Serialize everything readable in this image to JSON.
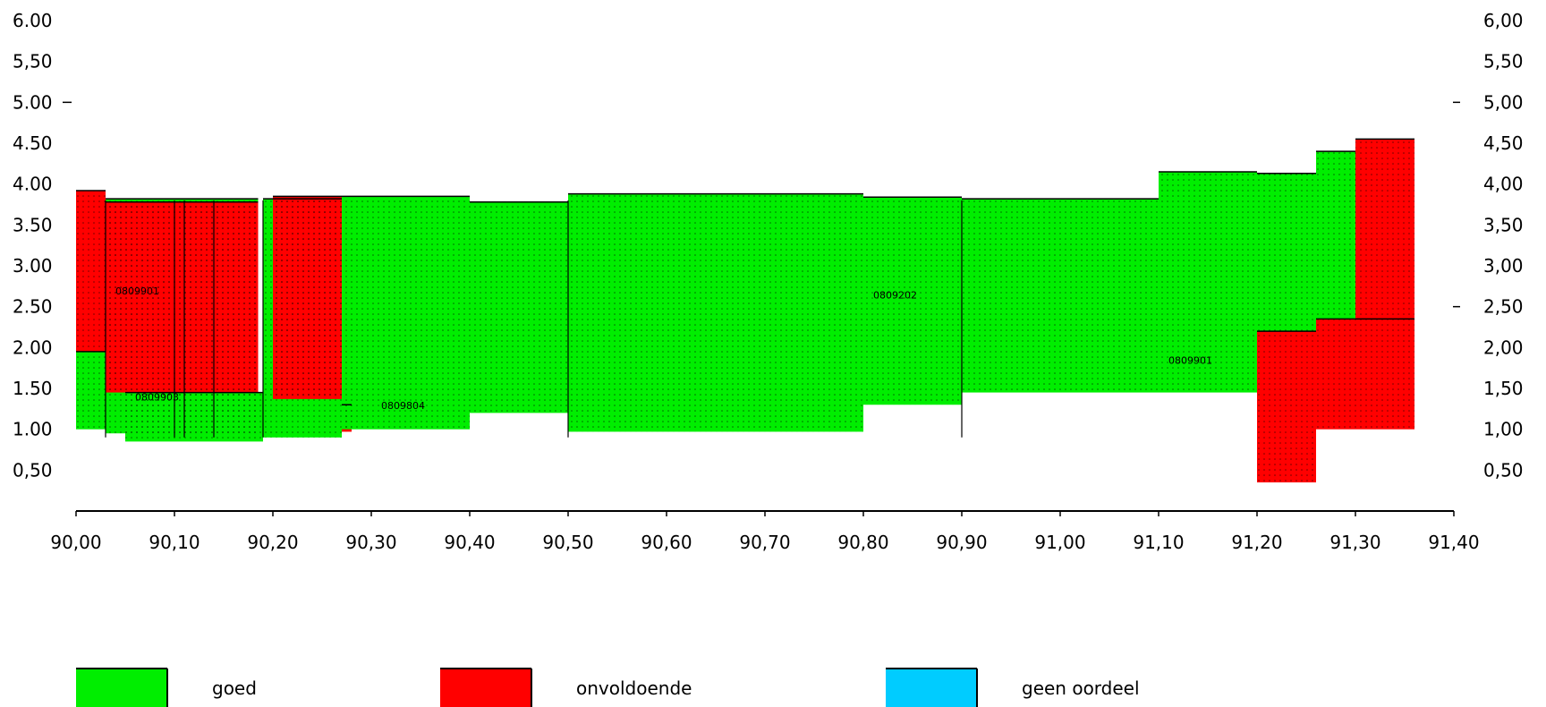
{
  "colors": {
    "goed": "#00ee00",
    "onvoldoende": "#ff0000",
    "geen_oordeel": "#00ccff",
    "axis": "#000000"
  },
  "chart_data": {
    "type": "area",
    "xlim": [
      90.0,
      91.4
    ],
    "ylim": [
      0.0,
      6.0
    ],
    "x_ticks": [
      "90,00",
      "90,10",
      "90,20",
      "90,30",
      "90,40",
      "90,50",
      "90,60",
      "90,70",
      "90,80",
      "90,90",
      "91,00",
      "91,10",
      "91,20",
      "91,30",
      "91,40"
    ],
    "y_ticks_left": [
      "0,50",
      "1.00",
      "1.50",
      "2.00",
      "2.50",
      "3.00",
      "3.50",
      "4.00",
      "4.50",
      "5.00",
      "5,50",
      "6.00"
    ],
    "y_ticks_right": [
      "0,50",
      "1,00",
      "1,50",
      "2,00",
      "2,50",
      "3,00",
      "3,50",
      "4,00",
      "4,50",
      "5,00",
      "5,50",
      "6,00"
    ],
    "grid": false,
    "legend_position": "bottom",
    "legend": [
      {
        "key": "goed",
        "label": "goed"
      },
      {
        "key": "onvoldoende",
        "label": "onvoldoende"
      },
      {
        "key": "geen_oordeel",
        "label": "geen oordeel"
      }
    ],
    "segments": [
      {
        "x0": 90.0,
        "x1": 90.03,
        "y0": 1.95,
        "y1": 3.92,
        "status": "onvoldoende"
      },
      {
        "x0": 90.0,
        "x1": 90.03,
        "y0": 1.0,
        "y1": 1.95,
        "status": "goed"
      },
      {
        "x0": 90.03,
        "x1": 90.185,
        "y0": 0.95,
        "y1": 3.82,
        "status": "goed"
      },
      {
        "x0": 90.03,
        "x1": 90.185,
        "y0": 1.45,
        "y1": 3.78,
        "status": "onvoldoende"
      },
      {
        "x0": 90.05,
        "x1": 90.19,
        "y0": 0.85,
        "y1": 1.45,
        "status": "goed"
      },
      {
        "x0": 90.19,
        "x1": 90.27,
        "y0": 0.9,
        "y1": 3.82,
        "status": "goed"
      },
      {
        "x0": 90.2,
        "x1": 90.27,
        "y0": 1.37,
        "y1": 3.85,
        "status": "onvoldoende"
      },
      {
        "x0": 90.27,
        "x1": 90.28,
        "y0": 0.97,
        "y1": 1.3,
        "status": "onvoldoende"
      },
      {
        "x0": 90.27,
        "x1": 90.4,
        "y0": 1.0,
        "y1": 3.85,
        "status": "goed"
      },
      {
        "x0": 90.4,
        "x1": 90.5,
        "y0": 1.2,
        "y1": 3.78,
        "status": "goed"
      },
      {
        "x0": 90.5,
        "x1": 90.7,
        "y0": 0.97,
        "y1": 3.88,
        "status": "goed"
      },
      {
        "x0": 90.7,
        "x1": 90.8,
        "y0": 0.97,
        "y1": 3.88,
        "status": "goed"
      },
      {
        "x0": 90.8,
        "x1": 90.9,
        "y0": 1.3,
        "y1": 3.84,
        "status": "goed"
      },
      {
        "x0": 90.9,
        "x1": 91.1,
        "y0": 1.45,
        "y1": 3.82,
        "status": "goed"
      },
      {
        "x0": 91.1,
        "x1": 91.2,
        "y0": 1.45,
        "y1": 4.15,
        "status": "goed"
      },
      {
        "x0": 91.2,
        "x1": 91.26,
        "y0": 2.2,
        "y1": 4.13,
        "status": "goed"
      },
      {
        "x0": 91.26,
        "x1": 91.3,
        "y0": 2.35,
        "y1": 4.4,
        "status": "goed"
      },
      {
        "x0": 91.2,
        "x1": 91.26,
        "y0": 0.35,
        "y1": 2.2,
        "status": "onvoldoende"
      },
      {
        "x0": 91.26,
        "x1": 91.36,
        "y0": 1.0,
        "y1": 2.35,
        "status": "onvoldoende"
      },
      {
        "x0": 91.3,
        "x1": 91.36,
        "y0": 2.35,
        "y1": 4.55,
        "status": "onvoldoende"
      }
    ],
    "segment_labels": [
      {
        "text": "0809901",
        "x": 90.04,
        "y": 2.65
      },
      {
        "text": "0809903",
        "x": 90.06,
        "y": 1.35
      },
      {
        "text": "0809804",
        "x": 90.31,
        "y": 1.25
      },
      {
        "text": "0809202",
        "x": 90.81,
        "y": 2.6
      },
      {
        "text": "0809901",
        "x": 91.11,
        "y": 1.8
      }
    ]
  }
}
